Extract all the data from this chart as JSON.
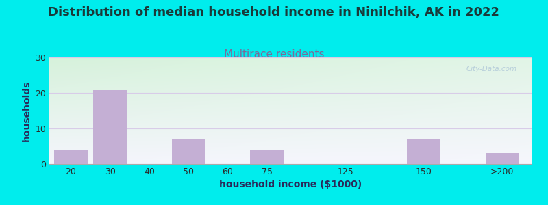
{
  "title": "Distribution of median household income in Ninilchik, AK in 2022",
  "subtitle": "Multirace residents",
  "xlabel": "household income ($1000)",
  "ylabel": "households",
  "categories": [
    "20",
    "30",
    "40",
    "50",
    "60",
    "75",
    "125",
    "150",
    ">200"
  ],
  "values": [
    4,
    21,
    0,
    7,
    0,
    4,
    0,
    7,
    3
  ],
  "bar_color": "#c4afd4",
  "bar_edge_color": "#b09ac0",
  "ylim": [
    0,
    30
  ],
  "yticks": [
    0,
    10,
    20,
    30
  ],
  "background_outer": "#00eded",
  "bg_top_left": "#d8f0dc",
  "bg_top_right": "#eef8f0",
  "bg_bottom_left": "#e8f4e8",
  "bg_bottom_right": "#f8f8fc",
  "title_fontsize": 13,
  "title_color": "#1a3a3a",
  "subtitle_fontsize": 11,
  "subtitle_color": "#7a6a9a",
  "axis_label_fontsize": 10,
  "axis_label_color": "#2a2a5a",
  "tick_fontsize": 9,
  "tick_color": "#2a2a2a",
  "grid_color": "#d8cce8",
  "watermark": "City-Data.com",
  "watermark_color": "#b0c8d8",
  "x_positions": [
    0,
    1,
    2,
    3,
    4,
    5,
    7,
    9,
    11
  ],
  "bar_width": 0.85,
  "xlim_left": -0.55,
  "xlim_right": 11.75
}
